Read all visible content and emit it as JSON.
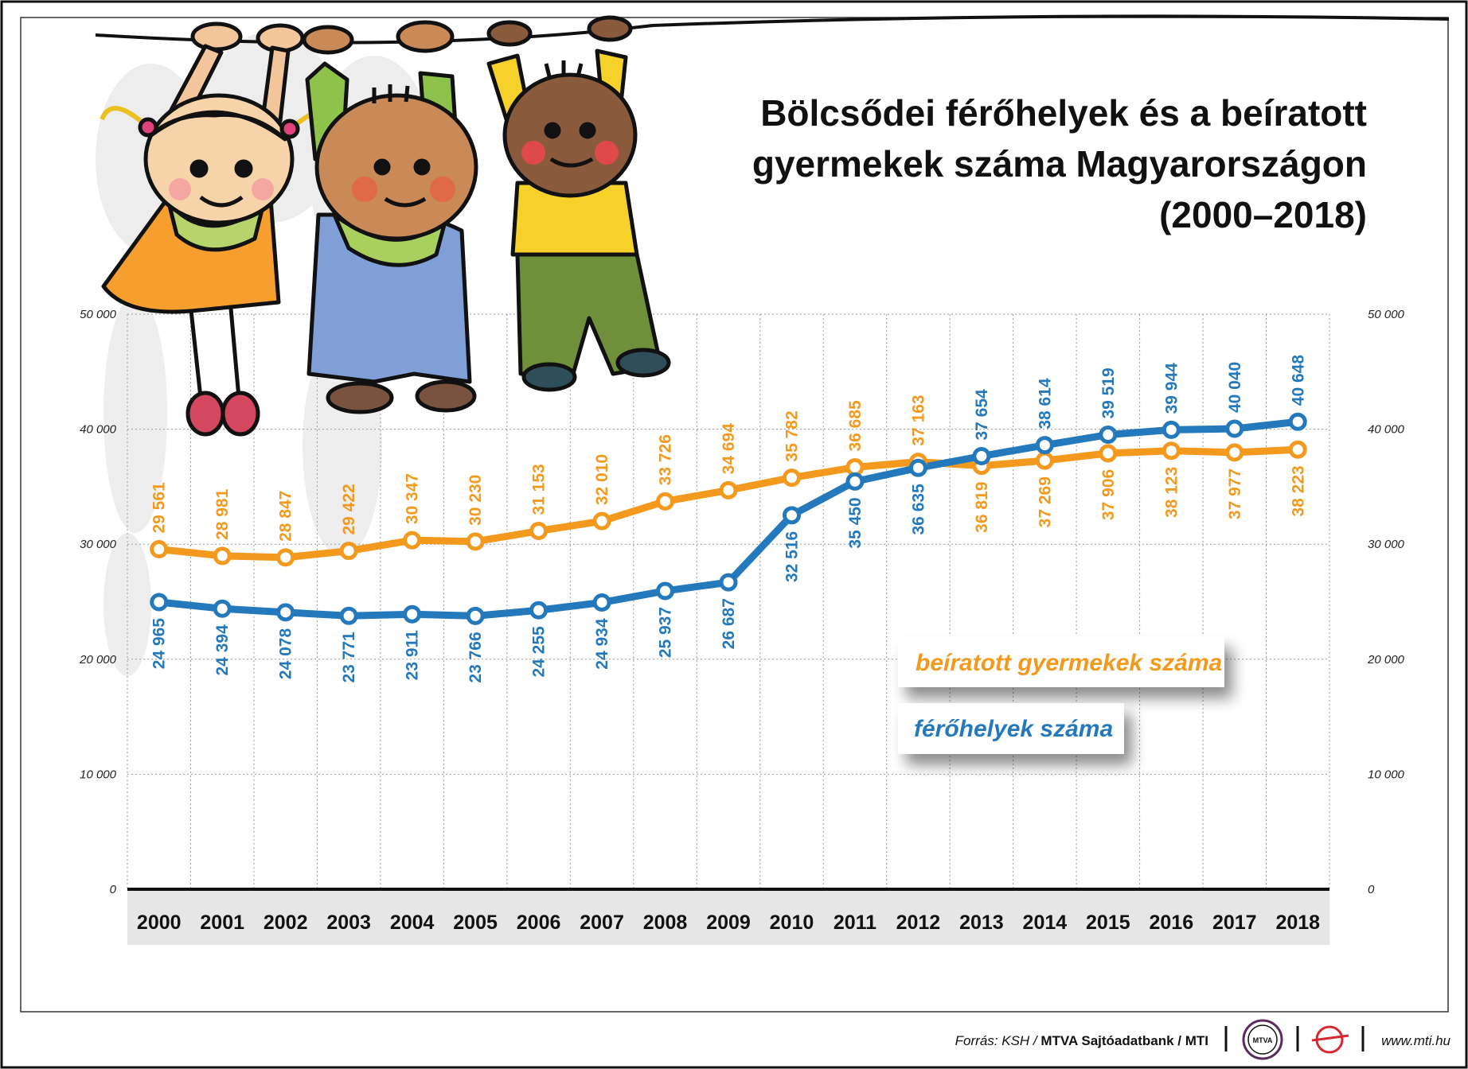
{
  "colors": {
    "orange": "#f39a1e",
    "blue": "#2479bd",
    "grid": "#9a9a9a",
    "axis_band": "#e6e6e6"
  },
  "footer": {
    "source_prefix": "Forrás: KSH / ",
    "source_bold": "MTVA Sajtóadatbank",
    "source_suffix": " / MTI",
    "logo_text": "MTVA",
    "website": "www.mti.hu"
  },
  "chart_data": {
    "type": "line",
    "title_lines": [
      "Bölcsődei férőhelyek és a beíratott",
      "gyermekek száma Magyarországon",
      "(2000–2018)"
    ],
    "xlabel": "",
    "ylabel": "",
    "ylim": [
      0,
      50000
    ],
    "yticks": [
      0,
      10000,
      20000,
      30000,
      40000,
      50000
    ],
    "ytick_labels": [
      "0",
      "10 000",
      "20 000",
      "30 000",
      "40 000",
      "50 000"
    ],
    "y_axis_sides": "left-and-right",
    "grid": true,
    "categories": [
      "2000",
      "2001",
      "2002",
      "2003",
      "2004",
      "2005",
      "2006",
      "2007",
      "2008",
      "2009",
      "2010",
      "2011",
      "2012",
      "2013",
      "2014",
      "2015",
      "2016",
      "2017",
      "2018"
    ],
    "series": [
      {
        "name": "beíratott gyermekek száma",
        "color": "orange",
        "values": [
          29561,
          28981,
          28847,
          29422,
          30347,
          30230,
          31153,
          32010,
          33726,
          34694,
          35782,
          36685,
          37163,
          36819,
          37269,
          37906,
          38123,
          37977,
          38223
        ],
        "labels": [
          "29 561",
          "28 981",
          "28 847",
          "29 422",
          "30 347",
          "30 230",
          "31 153",
          "32 010",
          "33 726",
          "34 694",
          "35 782",
          "36 685",
          "37 163",
          "36 819",
          "37 269",
          "37 906",
          "38 123",
          "37 977",
          "38 223"
        ]
      },
      {
        "name": "férőhelyek száma",
        "color": "blue",
        "values": [
          24965,
          24394,
          24078,
          23771,
          23911,
          23766,
          24255,
          24934,
          25937,
          26687,
          32516,
          35450,
          36635,
          37654,
          38614,
          39519,
          39944,
          40040,
          40648
        ],
        "labels": [
          "24 965",
          "24 394",
          "24 078",
          "23 771",
          "23 911",
          "23 766",
          "24 255",
          "24 934",
          "25 937",
          "26 687",
          "32 516",
          "35 450",
          "36 635",
          "37 654",
          "38 614",
          "39 519",
          "39 944",
          "40 040",
          "40 648"
        ]
      }
    ],
    "legend": [
      {
        "label": "beíratott gyermekek száma",
        "color": "orange"
      },
      {
        "label": "férőhelyek száma",
        "color": "blue"
      }
    ],
    "legend_position": "right-lower"
  }
}
